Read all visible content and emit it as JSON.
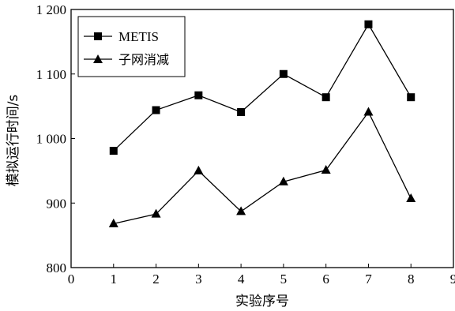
{
  "chart_data": {
    "type": "line",
    "xlabel": "实验序号",
    "ylabel": "模拟运行时间/s",
    "xlim": [
      0,
      9
    ],
    "ylim": [
      800,
      1200
    ],
    "x_ticks": [
      "0",
      "1",
      "2",
      "3",
      "4",
      "5",
      "6",
      "7",
      "8",
      "9"
    ],
    "y_ticks": [
      "800",
      "900",
      "1 000",
      "1 100",
      "1 200"
    ],
    "grid": false,
    "legend_position": "top-left",
    "x": [
      1,
      2,
      3,
      4,
      5,
      6,
      7,
      8
    ],
    "series": [
      {
        "name": "METIS",
        "marker": "square",
        "values": [
          981,
          1044,
          1067,
          1041,
          1100,
          1064,
          1177,
          1064
        ]
      },
      {
        "name": "子网消减",
        "marker": "triangle",
        "values": [
          868,
          883,
          950,
          887,
          933,
          951,
          1041,
          907
        ]
      }
    ]
  }
}
